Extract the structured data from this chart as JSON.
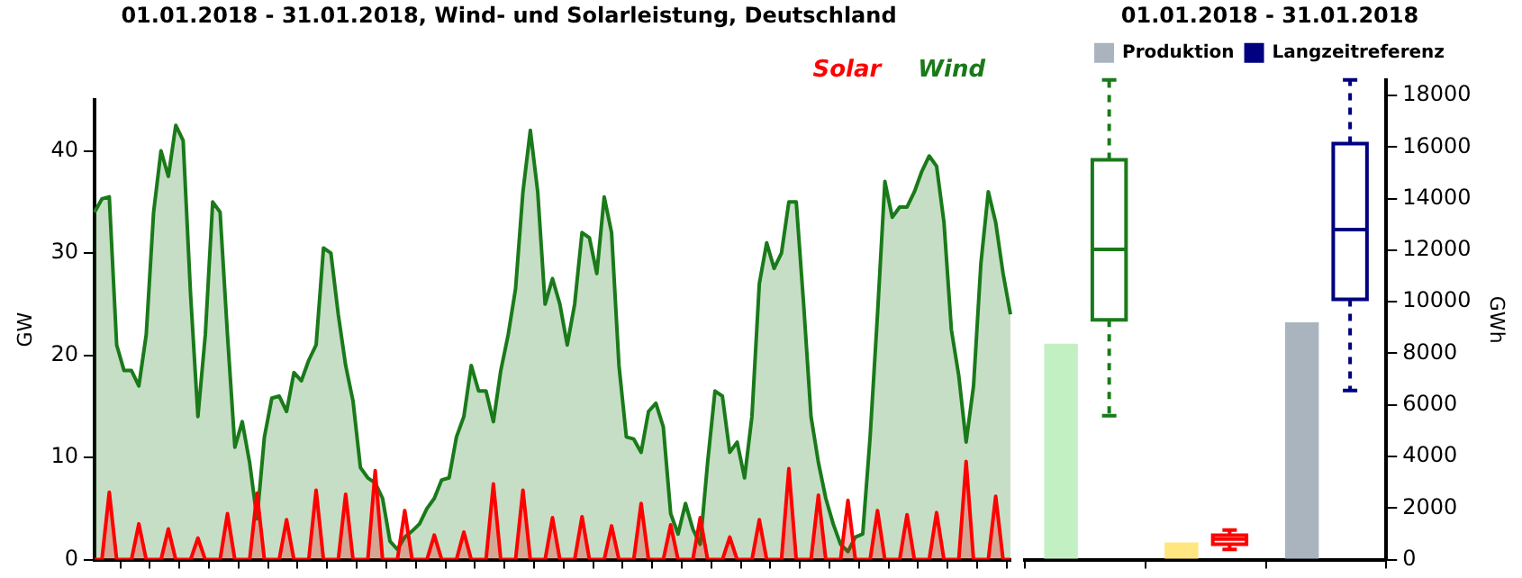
{
  "chart_data": [
    {
      "type": "area",
      "title": "01.01.2018 - 31.01.2018, Wind- und Solarleistung, Deutschland",
      "ylabel": "GW",
      "categories": [
        null,
        null,
        null,
        null,
        null,
        null,
        null,
        null,
        null,
        null,
        null,
        null,
        null,
        null,
        null,
        null,
        null,
        null,
        null,
        null,
        null,
        null,
        null,
        null,
        null,
        null,
        null,
        null,
        null,
        null,
        null,
        null,
        null,
        null,
        null,
        null,
        null,
        null,
        null,
        null,
        null,
        null,
        null,
        null,
        null,
        null,
        null,
        null,
        null,
        null,
        null,
        null,
        null,
        null,
        null,
        null,
        null,
        null,
        null,
        null,
        null,
        null,
        null,
        null,
        null,
        null,
        null,
        null,
        null,
        null,
        null,
        null,
        null,
        null,
        null,
        null,
        null,
        null,
        null,
        null,
        null,
        null,
        null,
        null,
        null,
        null,
        null,
        null,
        null,
        null,
        null,
        null,
        null,
        null,
        null,
        null,
        null,
        null,
        null,
        null,
        null,
        null,
        null,
        null,
        null,
        null,
        null,
        null,
        null,
        null,
        null,
        null,
        null,
        null,
        null,
        null,
        null,
        null,
        null,
        null,
        null,
        null,
        null,
        null,
        null
      ],
      "ylim": [
        0,
        45
      ],
      "yticks": [
        0,
        10,
        20,
        30,
        40
      ],
      "grid": false,
      "legend": "top right",
      "tick_labels": "y",
      "series": [
        {
          "name": "Solar",
          "color": "#ff0000",
          "values": [
            0,
            0,
            6.6,
            0,
            0,
            0,
            3.5,
            0,
            0,
            0,
            3.0,
            0,
            0,
            0,
            2.1,
            0,
            0,
            0,
            4.5,
            0,
            0,
            0,
            6.5,
            0,
            0,
            0,
            3.9,
            0,
            0,
            0,
            6.8,
            0,
            0,
            0,
            6.4,
            0,
            0,
            0,
            8.7,
            0,
            0,
            0,
            4.8,
            0,
            0,
            0,
            2.4,
            0,
            0,
            0,
            2.7,
            0,
            0,
            0,
            7.4,
            0,
            0,
            0,
            6.8,
            0,
            0,
            0,
            4.1,
            0,
            0,
            0,
            4.2,
            0,
            0,
            0,
            3.3,
            0,
            0,
            0,
            5.5,
            0,
            0,
            0,
            3.4,
            0,
            0,
            0,
            4.1,
            0,
            0,
            0,
            2.2,
            0,
            0,
            0,
            3.9,
            0,
            0,
            0,
            8.9,
            0,
            0,
            0,
            6.3,
            0,
            0,
            0,
            5.8,
            0,
            0,
            0,
            4.8,
            0,
            0,
            0,
            4.4,
            0,
            0,
            0,
            4.6,
            0,
            0,
            0,
            9.6,
            0,
            0,
            0,
            6.2,
            0,
            0
          ]
        },
        {
          "name": "Wind",
          "color": "#1a7a1a",
          "values": [
            34,
            35.3,
            35.5,
            21,
            18.5,
            18.5,
            17,
            22,
            34,
            40,
            37.5,
            42.5,
            41,
            26,
            14,
            22,
            35,
            34,
            22,
            11,
            13.5,
            9.5,
            4,
            12,
            15.8,
            16,
            14.5,
            18.3,
            17.5,
            19.5,
            21,
            30.5,
            30,
            24,
            19,
            15.5,
            9,
            8,
            7.5,
            6,
            1.8,
            1,
            2.2,
            2.8,
            3.5,
            5,
            6,
            7.8,
            8,
            12,
            14,
            19,
            16.5,
            16.5,
            13.5,
            18.5,
            22,
            26.5,
            36,
            42,
            36,
            25,
            27.5,
            25,
            21,
            25,
            32,
            31.5,
            28,
            35.5,
            32,
            19,
            12,
            11.8,
            10.5,
            14.5,
            15.3,
            13,
            4.5,
            2.5,
            5.5,
            3,
            1.5,
            9.5,
            16.5,
            16,
            10.5,
            11.5,
            8,
            14,
            27,
            31,
            28.5,
            30,
            35,
            35,
            25,
            14,
            9.5,
            6,
            3.5,
            1.5,
            0.8,
            2.2,
            2.5,
            12,
            24,
            37,
            33.5,
            34.5,
            34.5,
            36,
            38,
            39.5,
            38.5,
            33,
            22.5,
            18,
            11.5,
            17,
            29,
            36,
            33,
            28,
            24
          ]
        }
      ]
    },
    {
      "type": "bar",
      "title": "01.01.2018 - 31.01.2018",
      "ylabel": "GWh",
      "categories": [
        null,
        null,
        null
      ],
      "ylim": [
        0,
        18600
      ],
      "yticks": [
        0,
        2000,
        4000,
        6000,
        8000,
        10000,
        12000,
        14000,
        16000,
        18000
      ],
      "grid": false,
      "legend": "top",
      "tick_labels": "y",
      "series": [
        {
          "name": "Produktion",
          "type": "bar",
          "color": "#aab4bf",
          "colors": [
            "#c3f0c3",
            "#ffe680",
            "#aab4bf"
          ],
          "values": [
            8370,
            670,
            9200
          ]
        },
        {
          "name": "Langzeitreferenz",
          "type": "box",
          "color": "#000080",
          "colors": [
            "#1a7a1a",
            "#ff0000",
            "#000080"
          ],
          "boxes": [
            {
              "low": 5580,
              "q1": 9300,
              "median": 12030,
              "q3": 15500,
              "high": 18600
            },
            {
              "low": 400,
              "q1": 600,
              "median": 800,
              "q3": 950,
              "high": 1150
            },
            {
              "low": 6560,
              "q1": 10090,
              "median": 12800,
              "q3": 16130,
              "high": 18600
            }
          ]
        }
      ]
    }
  ]
}
